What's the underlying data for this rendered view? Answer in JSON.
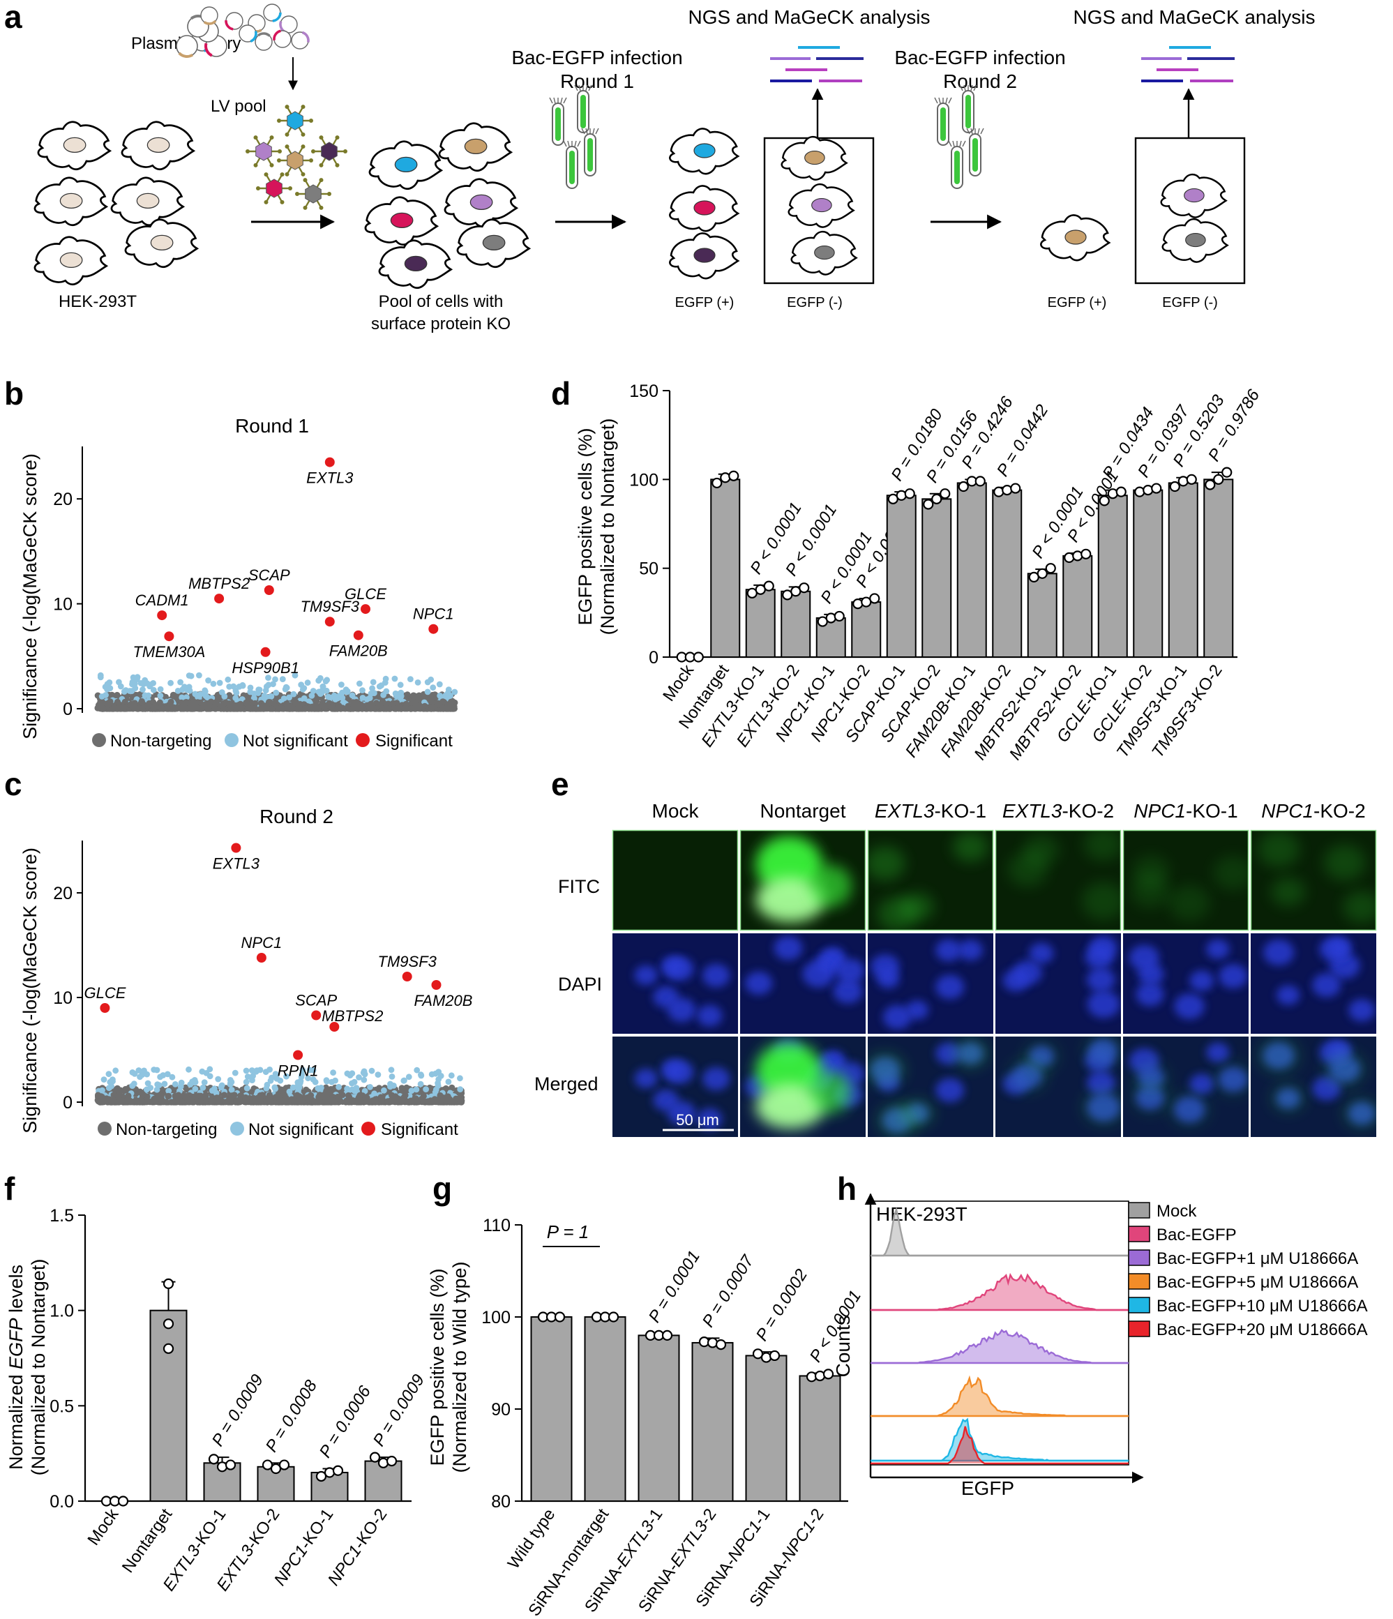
{
  "panel_letters": [
    "a",
    "b",
    "c",
    "d",
    "e",
    "f",
    "g",
    "h"
  ],
  "panel_a": {
    "plasmid_label": "Plasmid library",
    "lv_label": "LV pool",
    "hek_label": "HEK-293T",
    "pool_label_1": "Pool of cells with",
    "pool_label_2": "surface protein KO",
    "r1_title_1": "Bac-EGFP infection",
    "r1_title_2": "Round 1",
    "r2_title_1": "Bac-EGFP infection",
    "r2_title_2": "Round 2",
    "ngs_label_1": "NGS and MaGeCK analysis",
    "ngs_label_2": "NGS and MaGeCK analysis",
    "pos_label_1": "EGFP (+)",
    "neg_label_1": "EGFP (-)",
    "pos_label_2": "EGFP (+)",
    "neg_label_2": "EGFP (-)",
    "colors": {
      "cyan": "#1fa9e0",
      "tan": "#c8a06c",
      "purple": "#b080c8",
      "crimson": "#d6145a",
      "plum": "#4a2a55",
      "grey": "#7d7d7d",
      "nucleus": "#ece0d4",
      "virus_body": "#e7c9a1",
      "virus_spike": "#7a7a2a"
    }
  },
  "legend_scatter": {
    "nontargeting": "Non-targeting",
    "notsig": "Not significant",
    "sig": "Significant"
  },
  "chart_data": [
    {
      "id": "b",
      "type": "scatter",
      "title": "Round 1",
      "ylabel": "Significance (-log(MaGeCK score)",
      "xlabel": "",
      "ylim": [
        0,
        25
      ],
      "yticks": [
        0,
        10,
        20
      ],
      "series": [
        {
          "name": "Significant",
          "color": "#e31a1c",
          "points": [
            {
              "label": "EXTL3",
              "x": 0.65,
              "y": 23.5
            },
            {
              "label": "CADM1",
              "x": 0.18,
              "y": 8.9
            },
            {
              "label": "TMEM30A",
              "x": 0.2,
              "y": 6.9
            },
            {
              "label": "MBTPS2",
              "x": 0.34,
              "y": 10.5
            },
            {
              "label": "SCAP",
              "x": 0.48,
              "y": 11.3
            },
            {
              "label": "HSP90B1",
              "x": 0.47,
              "y": 5.4
            },
            {
              "label": "TM9SF3",
              "x": 0.65,
              "y": 8.3
            },
            {
              "label": "GLCE",
              "x": 0.75,
              "y": 9.5
            },
            {
              "label": "FAM20B",
              "x": 0.73,
              "y": 7.0
            },
            {
              "label": "NPC1",
              "x": 0.94,
              "y": 7.6
            }
          ]
        }
      ],
      "colors": {
        "nontargeting": "#6e6e6e",
        "notsig": "#8fc4e0",
        "sig": "#e31a1c"
      }
    },
    {
      "id": "c",
      "type": "scatter",
      "title": "Round 2",
      "ylabel": "Significance (-log(MaGeCK score)",
      "xlabel": "",
      "ylim": [
        0,
        25
      ],
      "yticks": [
        0,
        10,
        20
      ],
      "series": [
        {
          "name": "Significant",
          "color": "#e31a1c",
          "points": [
            {
              "label": "EXTL3",
              "x": 0.38,
              "y": 24.3
            },
            {
              "label": "NPC1",
              "x": 0.45,
              "y": 13.8
            },
            {
              "label": "GLCE",
              "x": 0.02,
              "y": 9.0
            },
            {
              "label": "TM9SF3",
              "x": 0.85,
              "y": 12.0
            },
            {
              "label": "FAM20B",
              "x": 0.93,
              "y": 11.2
            },
            {
              "label": "SCAP",
              "x": 0.6,
              "y": 8.3
            },
            {
              "label": "MBTPS2",
              "x": 0.65,
              "y": 7.2
            },
            {
              "label": "RPN1",
              "x": 0.55,
              "y": 4.5
            }
          ]
        }
      ],
      "colors": {
        "nontargeting": "#6e6e6e",
        "notsig": "#8fc4e0",
        "sig": "#e31a1c"
      }
    },
    {
      "id": "d",
      "type": "bar",
      "ylabel": "EGFP positive cells (%)",
      "ylabel2": "(Normalized to Nontarget)",
      "ylim": [
        0,
        150
      ],
      "yticks": [
        0,
        50,
        100,
        150
      ],
      "categories": [
        [
          "Mock"
        ],
        [
          "Nontarget"
        ],
        [
          "EXTL3",
          "-KO-1"
        ],
        [
          "EXTL3",
          "-KO-2"
        ],
        [
          "NPC1",
          "-KO-1"
        ],
        [
          "NPC1",
          "-KO-2"
        ],
        [
          "SCAP",
          "-KO-1"
        ],
        [
          "SCAP",
          "-KO-2"
        ],
        [
          "FAM20B",
          "-KO-1"
        ],
        [
          "FAM20B",
          "-KO-2"
        ],
        [
          "MBTPS2",
          "-KO-1"
        ],
        [
          "MBTPS2",
          "-KO-2"
        ],
        [
          "GCLE",
          "-KO-1"
        ],
        [
          "GCLE",
          "-KO-2"
        ],
        [
          "TM9SF3",
          "-KO-1"
        ],
        [
          "TM9SF3",
          "-KO-2"
        ]
      ],
      "values": [
        0,
        100,
        38,
        37,
        22,
        31,
        91,
        89,
        98,
        94,
        47,
        57,
        91,
        94,
        98,
        100
      ],
      "errors": [
        0,
        3,
        2.5,
        2.5,
        2,
        2,
        2,
        3,
        2,
        1.5,
        2.5,
        1.5,
        3,
        1,
        3,
        4
      ],
      "points": [
        [
          0,
          0,
          0
        ],
        [
          98,
          101,
          102
        ],
        [
          36,
          38,
          40
        ],
        [
          35,
          37,
          39
        ],
        [
          20,
          22,
          23
        ],
        [
          30,
          31,
          33
        ],
        [
          89,
          91,
          92
        ],
        [
          86,
          89,
          92
        ],
        [
          96,
          99,
          99
        ],
        [
          93,
          94,
          95
        ],
        [
          45,
          47,
          50
        ],
        [
          56,
          57,
          58
        ],
        [
          88,
          92,
          93
        ],
        [
          93,
          94,
          95
        ],
        [
          96,
          99,
          100
        ],
        [
          97,
          100,
          104
        ]
      ],
      "pvalues": [
        "",
        "",
        "P < 0.0001",
        "P < 0.0001",
        "P < 0.0001",
        "P < 0.0001",
        "P = 0.0180",
        "P = 0.0156",
        "P = 0.4246",
        "P = 0.0442",
        "P < 0.0001",
        "P < 0.0001",
        "P = 0.0434",
        "P = 0.0397",
        "P = 0.5203",
        "P = 0.9786"
      ],
      "colors": {
        "bar": "#a6a6a6"
      }
    },
    {
      "id": "f",
      "type": "bar",
      "ylabel_prefix": "Normalized ",
      "ylabel_italic": "EGFP",
      "ylabel_suffix": " levels",
      "ylabel2": "(Normalized to Nontarget)",
      "ylim": [
        0,
        1.5
      ],
      "yticks": [
        "0.0",
        "0.5",
        "1.0",
        "1.5"
      ],
      "categories": [
        [
          "Mock"
        ],
        [
          "Nontarget"
        ],
        [
          "EXTL3",
          "-KO-1"
        ],
        [
          "EXTL3",
          "-KO-2"
        ],
        [
          "NPC1",
          "-KO-1"
        ],
        [
          "NPC1",
          "-KO-2"
        ]
      ],
      "values": [
        0,
        1.0,
        0.2,
        0.18,
        0.15,
        0.21
      ],
      "errors": [
        0,
        0.15,
        0.03,
        0.02,
        0.02,
        0.02
      ],
      "points": [
        [
          0,
          0,
          0
        ],
        [
          1.14,
          0.93,
          0.8
        ],
        [
          0.22,
          0.18,
          0.19
        ],
        [
          0.19,
          0.17,
          0.19
        ],
        [
          0.13,
          0.15,
          0.16
        ],
        [
          0.23,
          0.2,
          0.21
        ]
      ],
      "pvalues": [
        "",
        "",
        "P = 0.0009",
        "P = 0.0008",
        "P = 0.0006",
        "P = 0.0009"
      ],
      "colors": {
        "bar": "#a6a6a6"
      }
    },
    {
      "id": "g",
      "type": "bar",
      "ylabel": "EGFP positive cells (%)",
      "ylabel2": "(Normalized to Wild type)",
      "ylim": [
        80,
        110
      ],
      "yticks": [
        80,
        90,
        100,
        110
      ],
      "categories": [
        [
          "Wild type"
        ],
        [
          "SiRNA-nontarget"
        ],
        [
          "SiRNA-",
          "EXTL3",
          "-1"
        ],
        [
          "SiRNA-",
          "EXTL3",
          "-2"
        ],
        [
          "SiRNA-",
          "NPC1",
          "-1"
        ],
        [
          "SiRNA-",
          "NPC1",
          "-2"
        ]
      ],
      "values": [
        100,
        100,
        98,
        97.2,
        95.8,
        93.6
      ],
      "errors": [
        0.2,
        0.2,
        0.2,
        0.5,
        0.4,
        0.3
      ],
      "points": [
        [
          100,
          100,
          100
        ],
        [
          100,
          100,
          100
        ],
        [
          98,
          98,
          98
        ],
        [
          97.3,
          97.2,
          97
        ],
        [
          96,
          95.6,
          95.8
        ],
        [
          93.5,
          93.6,
          93.8
        ]
      ],
      "pvalues": [
        "",
        "",
        "P = 0.0001",
        "P = 0.0007",
        "P = 0.0002",
        "P < 0.0001"
      ],
      "pair_label": "P = 1",
      "colors": {
        "bar": "#a6a6a6"
      }
    },
    {
      "id": "h",
      "type": "area",
      "title": "HEK-293T",
      "xlabel": "EGFP",
      "ylabel": "Counts",
      "series": [
        {
          "name": "Mock",
          "color": "#a0a0a0",
          "peak": 0.1,
          "width": 0.018,
          "tail": 0
        },
        {
          "name": "Bac-EGFP",
          "color": "#e0457b",
          "peak": 0.57,
          "width": 0.11,
          "tail": 0.2
        },
        {
          "name": "Bac-EGFP+1 μM U18666A",
          "color": "#9b6bd6",
          "peak": 0.52,
          "width": 0.12,
          "tail": 0.2
        },
        {
          "name": "Bac-EGFP+5 μM U18666A",
          "color": "#f28c28",
          "peak": 0.4,
          "width": 0.05,
          "tail": 0.35
        },
        {
          "name": "Bac-EGFP+10 μM U18666A",
          "color": "#1fb7e5",
          "peak": 0.36,
          "width": 0.03,
          "tail": 0.3
        },
        {
          "name": "Bac-EGFP+20 μM U18666A",
          "color": "#e8242b",
          "peak": 0.37,
          "width": 0.025,
          "tail": 0
        }
      ]
    }
  ],
  "panel_e": {
    "columns": [
      {
        "gene": "",
        "suffix": "Mock"
      },
      {
        "gene": "",
        "suffix": "Nontarget"
      },
      {
        "gene": "EXTL3",
        "suffix": "-KO-1"
      },
      {
        "gene": "EXTL3",
        "suffix": "-KO-2"
      },
      {
        "gene": "NPC1",
        "suffix": "-KO-1"
      },
      {
        "gene": "NPC1",
        "suffix": "-KO-2"
      }
    ],
    "rows": [
      "FITC",
      "DAPI",
      "Merged"
    ],
    "scalebar": "50 μm",
    "green_intensity": [
      0,
      1.0,
      0.4,
      0.25,
      0.2,
      0.3
    ],
    "colors": {
      "fitc_bg": "#072005",
      "dapi_bg": "#0a1352",
      "merged_bg": "#0a1a40",
      "green": "#3cff3c",
      "blue": "#2a3cd8",
      "frame": "#8fe08f"
    }
  }
}
